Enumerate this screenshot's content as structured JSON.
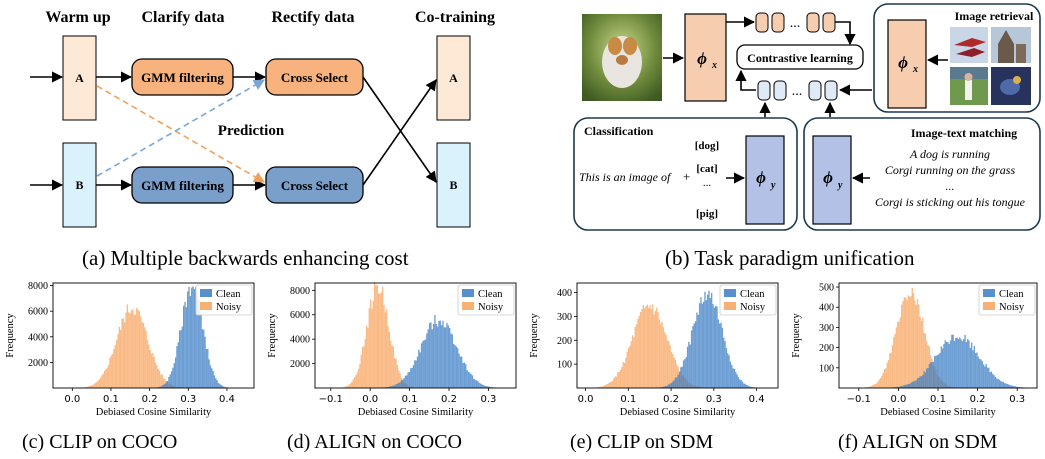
{
  "panel_a": {
    "stage_labels": [
      "Warm up",
      "Clarify data",
      "Rectify data",
      "Co-training"
    ],
    "node_a": "A",
    "node_b": "B",
    "gmm_label": "GMM filtering",
    "cross_label": "Cross Select",
    "prediction_label": "Prediction",
    "caption": "(a) Multiple backwards enhancing cost",
    "colors": {
      "orange_fill": "#f7b27e",
      "blue_fill": "#7a9fcb",
      "a_fill": "#fde9d5",
      "b_fill": "#d9f2fb"
    }
  },
  "panel_b": {
    "phi_x": "ϕ",
    "phi_x_sub": "x",
    "phi_y": "ϕ",
    "phi_y_sub": "y",
    "contrastive_label": "Contrastive learning",
    "image_retrieval_label": "Image retrieval",
    "classification": {
      "title": "Classification",
      "prompt": "This is an image of",
      "plus": "+",
      "classes": [
        "[dog]",
        "[cat]",
        "...",
        "[pig]"
      ]
    },
    "matching": {
      "title": "Image-text matching",
      "lines": [
        "A dog is running",
        "Corgi running on the grass",
        "...",
        "Corgi is sticking out his tongue"
      ]
    },
    "dots": "...",
    "caption": "(b) Task paradigm unification",
    "image_icons": [
      "corgi-photo",
      "airplanes-photo",
      "cathedral-photo",
      "baseball-photo",
      "bird-photo",
      "room-photo"
    ],
    "colors": {
      "phi_x_fill": "#f7cdb0",
      "phi_y_fill": "#b3c1e6",
      "cell_fill": "#dfeaf7"
    }
  },
  "chart_data": [
    {
      "type": "histogram",
      "caption": "(c) CLIP on COCO",
      "xlabel": "Debiased Cosine Similarity",
      "ylabel": "Frequency",
      "xlim": [
        -0.05,
        0.47
      ],
      "ylim": [
        0,
        8200
      ],
      "xticks": [
        "0.0",
        "0.1",
        "0.2",
        "0.3",
        "0.4"
      ],
      "xtick_values": [
        0.0,
        0.1,
        0.2,
        0.3,
        0.4
      ],
      "yticks": [
        "2000",
        "4000",
        "6000",
        "8000"
      ],
      "ytick_values": [
        2000,
        4000,
        6000,
        8000
      ],
      "legend_position": "top-right",
      "series": [
        {
          "name": "Clean",
          "color": "#3b7dc4",
          "center": 0.31,
          "spread": 0.028,
          "peak": 8000
        },
        {
          "name": "Noisy",
          "color": "#f7a35c",
          "center": 0.155,
          "spread": 0.04,
          "peak": 6300
        }
      ]
    },
    {
      "type": "histogram",
      "caption": "(d) ALIGN on COCO",
      "xlabel": "Debiased Cosine Similarity",
      "ylabel": "Frequency",
      "xlim": [
        -0.14,
        0.37
      ],
      "ylim": [
        0,
        8600
      ],
      "xticks": [
        "−0.1",
        "0.0",
        "0.1",
        "0.2",
        "0.3"
      ],
      "xtick_values": [
        -0.1,
        0.0,
        0.1,
        0.2,
        0.3
      ],
      "yticks": [
        "2000",
        "4000",
        "6000",
        "8000"
      ],
      "ytick_values": [
        2000,
        4000,
        6000,
        8000
      ],
      "legend_position": "top-right",
      "series": [
        {
          "name": "Clean",
          "color": "#3b7dc4",
          "center": 0.175,
          "spread": 0.045,
          "peak": 5600
        },
        {
          "name": "Noisy",
          "color": "#f7a35c",
          "center": 0.02,
          "spread": 0.028,
          "peak": 8300
        }
      ]
    },
    {
      "type": "histogram",
      "caption": "(e) CLIP on SDM",
      "xlabel": "Debiased Cosine Similarity",
      "ylabel": "Frequency",
      "xlim": [
        -0.02,
        0.45
      ],
      "ylim": [
        0,
        440
      ],
      "xticks": [
        "0.0",
        "0.1",
        "0.2",
        "0.3",
        "0.4"
      ],
      "xtick_values": [
        0.0,
        0.1,
        0.2,
        0.3,
        0.4
      ],
      "yticks": [
        "100",
        "200",
        "300",
        "400"
      ],
      "ytick_values": [
        100,
        200,
        300,
        400
      ],
      "legend_position": "top-right",
      "series": [
        {
          "name": "Clean",
          "color": "#3b7dc4",
          "center": 0.285,
          "spread": 0.035,
          "peak": 390
        },
        {
          "name": "Noisy",
          "color": "#f7a35c",
          "center": 0.15,
          "spread": 0.04,
          "peak": 340
        }
      ]
    },
    {
      "type": "histogram",
      "caption": "(f) ALIGN on SDM",
      "xlabel": "Debiased Cosine Similarity",
      "ylabel": "Frequency",
      "xlim": [
        -0.15,
        0.35
      ],
      "ylim": [
        0,
        520
      ],
      "xticks": [
        "−0.1",
        "0.0",
        "0.1",
        "0.2",
        "0.3"
      ],
      "xtick_values": [
        -0.1,
        0.0,
        0.1,
        0.2,
        0.3
      ],
      "yticks": [
        "100",
        "200",
        "300",
        "400",
        "500"
      ],
      "ytick_values": [
        100,
        200,
        300,
        400,
        500
      ],
      "legend_position": "top-right",
      "series": [
        {
          "name": "Clean",
          "color": "#3b7dc4",
          "center": 0.15,
          "spread": 0.055,
          "peak": 255
        },
        {
          "name": "Noisy",
          "color": "#f7a35c",
          "center": 0.03,
          "spread": 0.035,
          "peak": 490
        }
      ]
    }
  ]
}
